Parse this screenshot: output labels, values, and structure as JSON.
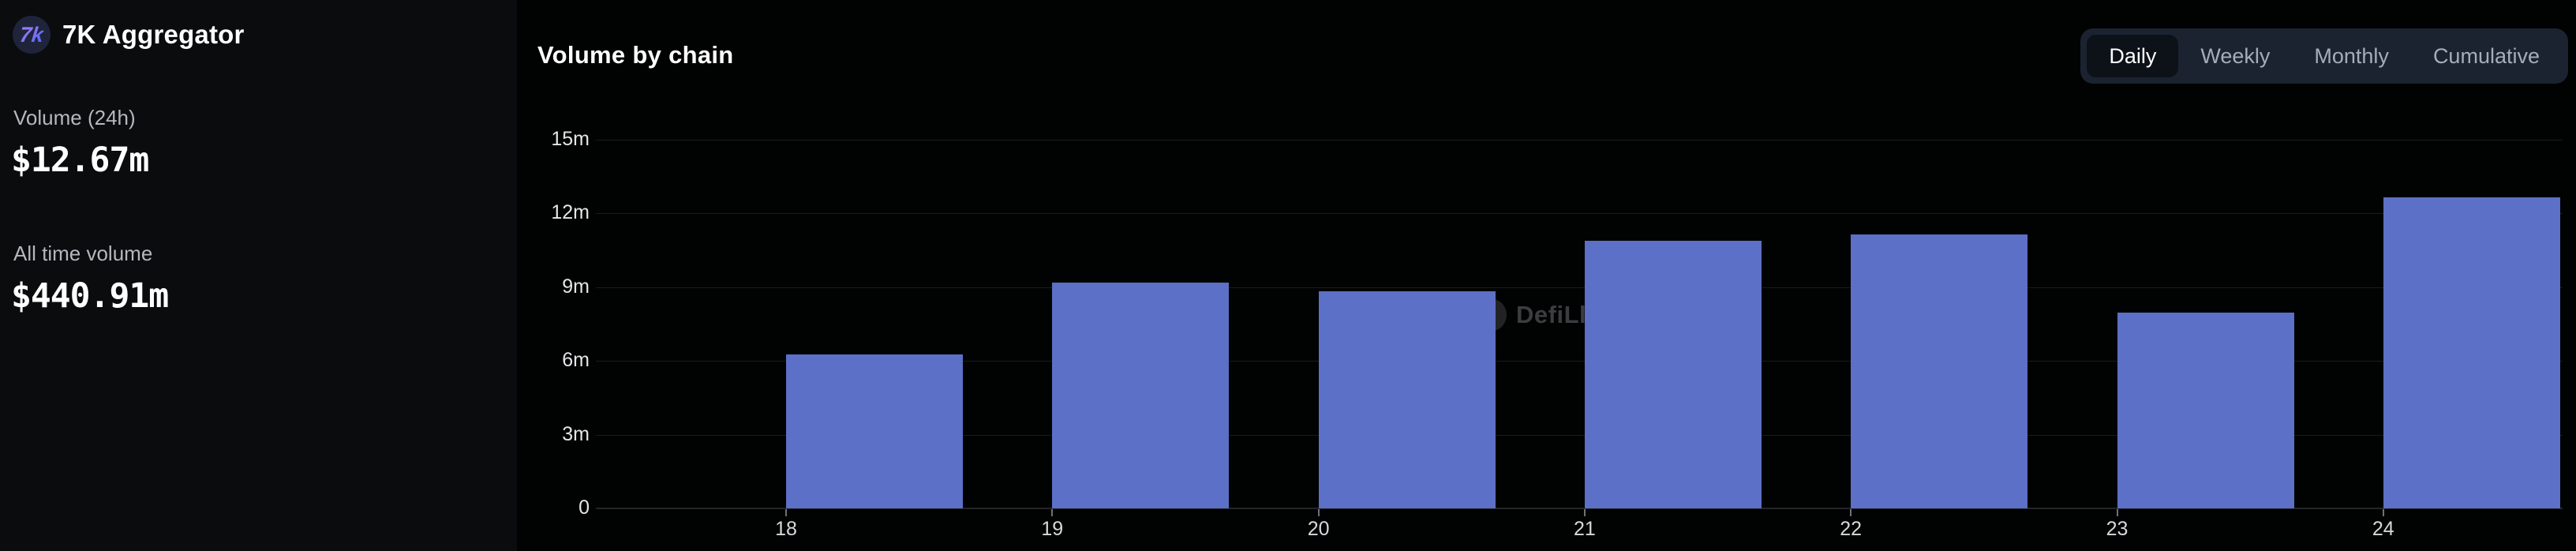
{
  "sidebar": {
    "logo_text": "7k",
    "app_title": "7K Aggregator",
    "stats": [
      {
        "label": "Volume (24h)",
        "value": "$12.67m"
      },
      {
        "label": "All time volume",
        "value": "$440.91m"
      }
    ]
  },
  "chart_header": {
    "title": "Volume by chain",
    "tabs": [
      {
        "label": "Daily",
        "active": true
      },
      {
        "label": "Weekly",
        "active": false
      },
      {
        "label": "Monthly",
        "active": false
      },
      {
        "label": "Cumulative",
        "active": false
      }
    ]
  },
  "watermark": {
    "label": "DefiLlama",
    "icon": "llama-circle-icon"
  },
  "colors": {
    "bar": "#5b70c6",
    "sidebar_bg": "#0a0c0e",
    "panel_bg": "#010202",
    "tab_group_bg": "#1b2330",
    "active_tab_bg": "#0d1118",
    "logo_gradient_start": "#9b7bfa",
    "logo_gradient_end": "#5d6cf5"
  },
  "chart_data": {
    "type": "bar",
    "title": "Volume by chain",
    "categories": [
      "18",
      "19",
      "20",
      "21",
      "22",
      "23",
      "24"
    ],
    "values": [
      6.28,
      9.18,
      8.84,
      10.89,
      11.14,
      7.97,
      12.67
    ],
    "unit": "millions USD",
    "xlabel": "",
    "ylabel": "",
    "ylim": [
      0,
      15
    ],
    "yticks": [
      0,
      3,
      6,
      9,
      12,
      15
    ],
    "ytick_labels": [
      "0",
      "3m",
      "6m",
      "9m",
      "12m",
      "15m"
    ],
    "grid": true,
    "legend": "none",
    "bar_color": "#5b70c6"
  }
}
